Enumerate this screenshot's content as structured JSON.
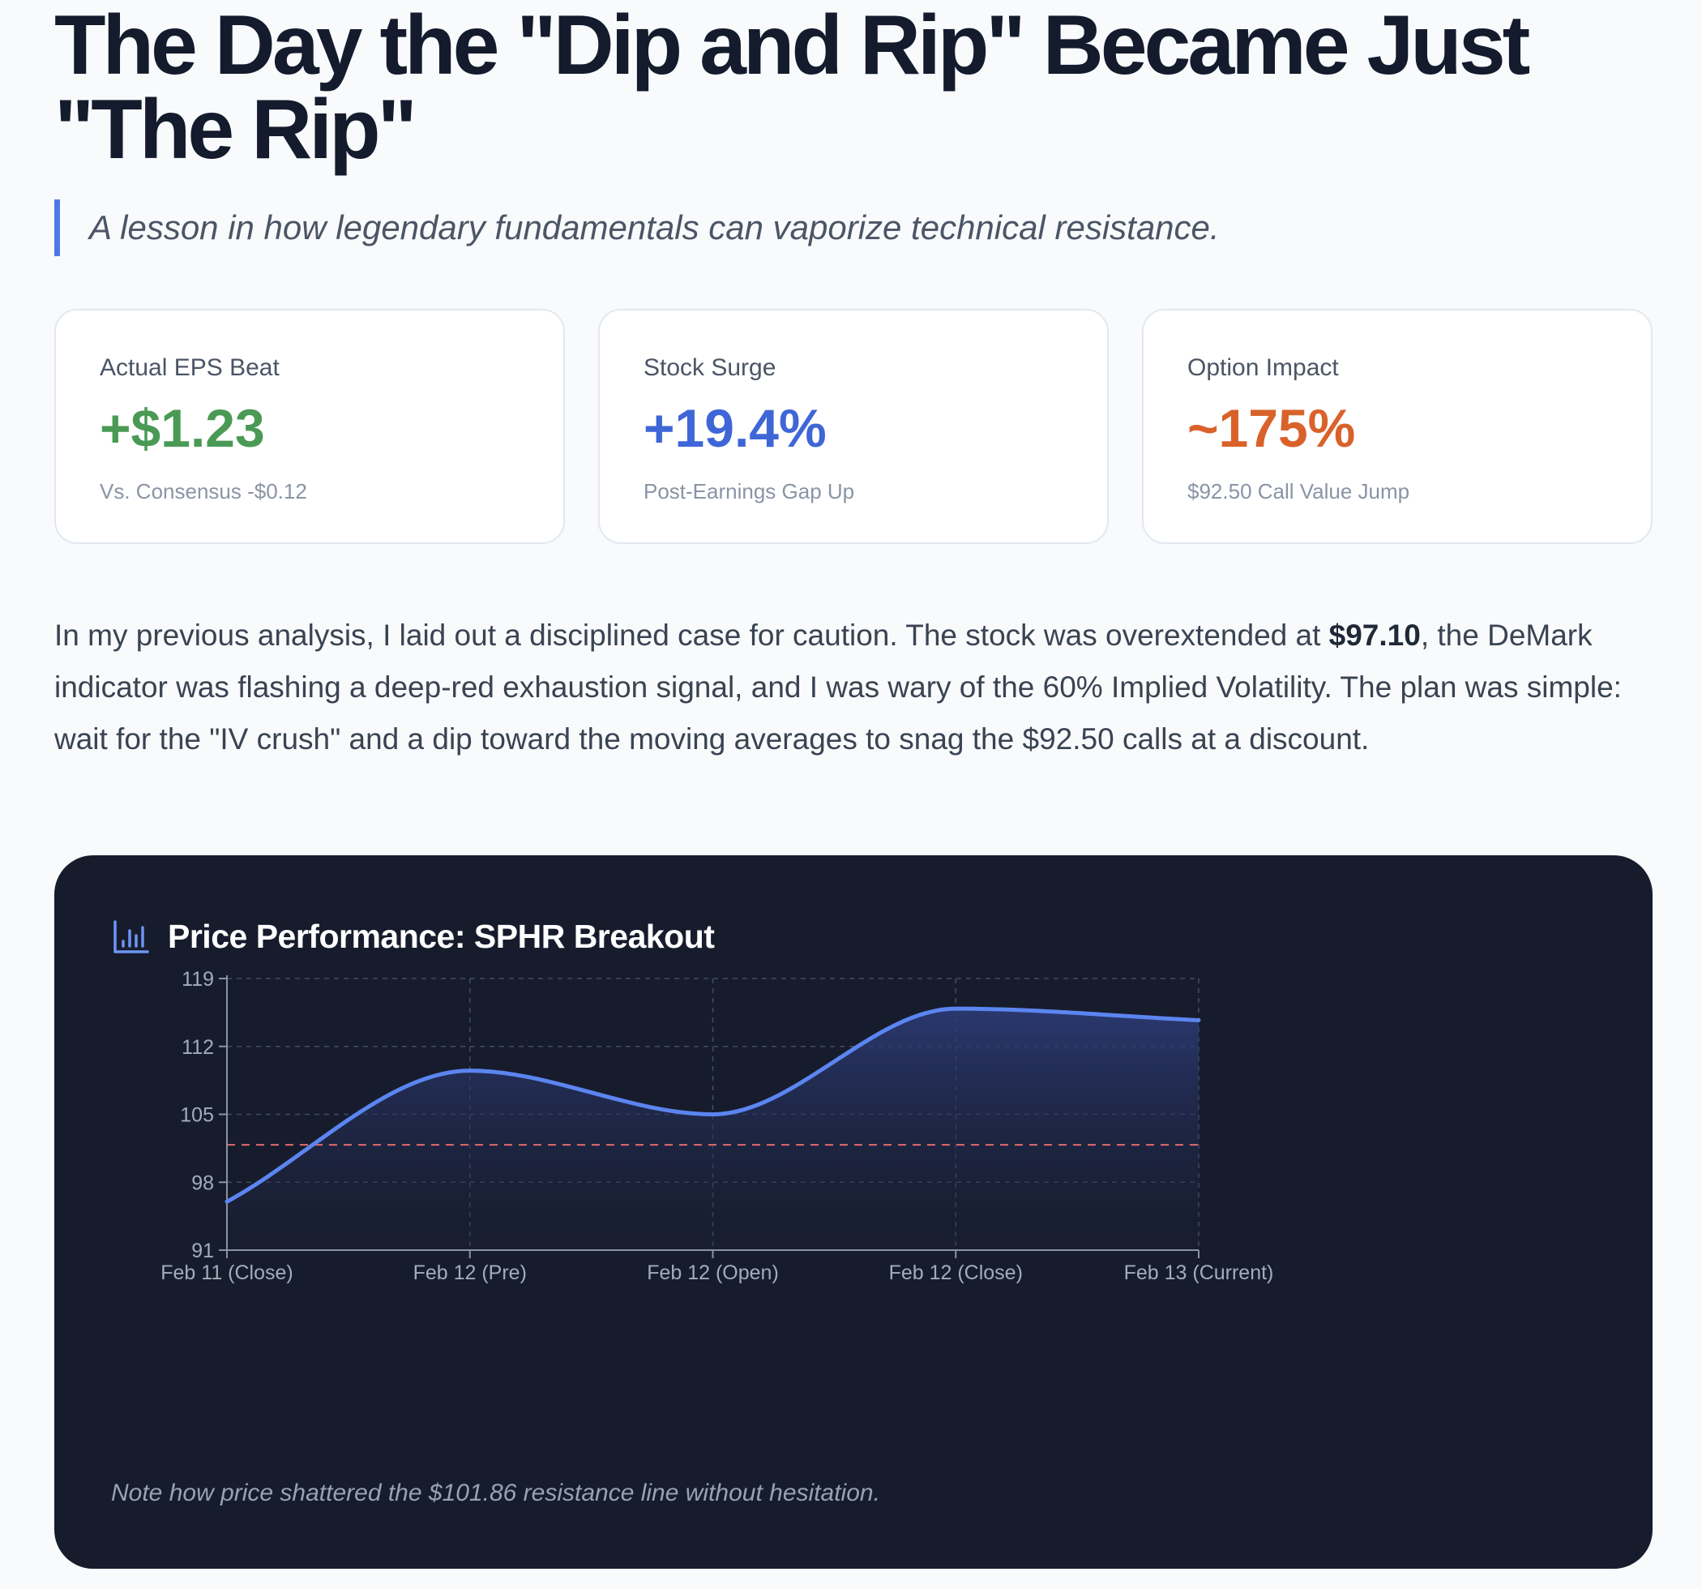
{
  "article": {
    "title": "The Day the \"Dip and Rip\" Became Just \"The Rip\"",
    "subtitle": "A lesson in how legendary fundamentals can vaporize technical resistance."
  },
  "metrics": [
    {
      "label": "Actual EPS Beat",
      "value": "+$1.23",
      "sub": "Vs. Consensus -$0.12",
      "color": "#4a9a55"
    },
    {
      "label": "Stock Surge",
      "value": "+19.4%",
      "sub": "Post-Earnings Gap Up",
      "color": "#3f66d6"
    },
    {
      "label": "Option Impact",
      "value": "~175%",
      "sub": "$92.50 Call Value Jump",
      "color": "#d9622b"
    }
  ],
  "paragraph": {
    "before": "In my previous analysis, I laid out a disciplined case for caution. The stock was overextended at ",
    "bold": "$97.10",
    "after": ", the DeMark indicator was flashing a deep-red exhaustion signal, and I was wary of the 60% Implied Volatility. The plan was simple: wait for the \"IV crush\" and a dip toward the moving averages to snag the $92.50 calls at a discount."
  },
  "chart_section": {
    "title": "Price Performance: SPHR Breakout",
    "icon": "bar-chart-icon",
    "note": "Note how price shattered the $101.86 resistance line without hesitation."
  },
  "chart_data": {
    "type": "line",
    "title": "Price Performance: SPHR Breakout",
    "categories": [
      "Feb 11 (Close)",
      "Feb 12 (Pre)",
      "Feb 12 (Open)",
      "Feb 12 (Close)",
      "Feb 13 (Current)"
    ],
    "series": [
      {
        "values": [
          96.0,
          109.5,
          105.0,
          115.9,
          114.7
        ]
      }
    ],
    "resistance": 101.86,
    "ylim": [
      91,
      119
    ],
    "yticks": [
      91,
      98,
      105,
      112,
      119
    ],
    "grid": true,
    "colors": {
      "line": "#5b85f0",
      "resistance": "#e06b6b",
      "grid": "#454c5e",
      "axis": "#8a93a3"
    }
  }
}
